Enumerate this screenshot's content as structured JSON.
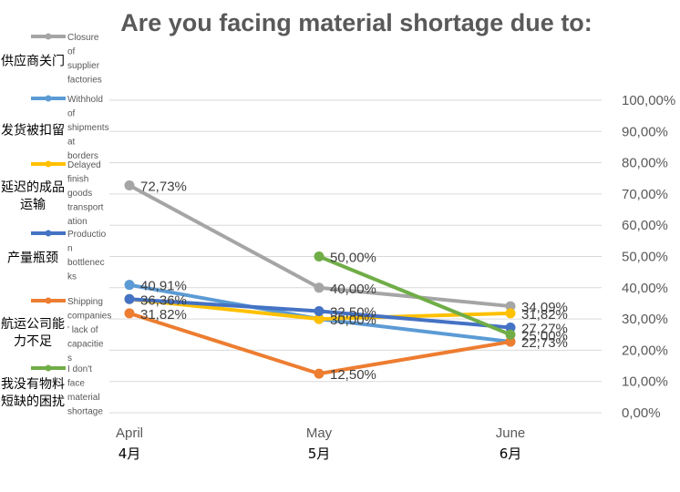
{
  "chart_data": {
    "type": "line",
    "title": "Are you facing material shortage due to:",
    "categories": [
      "April",
      "May",
      "June"
    ],
    "category_labels_cn": [
      "4月",
      "5月",
      "6月"
    ],
    "ylim": [
      0,
      100
    ],
    "y_ticks": [
      "0,00%",
      "10,00%",
      "20,00%",
      "30,00%",
      "40,00%",
      "50,00%",
      "60,00%",
      "70,00%",
      "80,00%",
      "90,00%",
      "100,00%"
    ],
    "grid": true,
    "legend_position": "left",
    "series": [
      {
        "name": "Closure of supplier factories",
        "name_cn": "供应商关门",
        "color": "#a5a5a5",
        "values": [
          72.73,
          40.0,
          34.09
        ],
        "labels": [
          "72,73%",
          "40,00%",
          "34,09%"
        ]
      },
      {
        "name": "Withhold of shipments at borders",
        "name_cn": "发货被扣留",
        "color": "#5b9bd5",
        "values": [
          40.91,
          30.0,
          22.73
        ],
        "labels": [
          "40,91%",
          "",
          ""
        ]
      },
      {
        "name": "Delayed finish goods transportation",
        "name_cn": "延迟的成品运输",
        "color": "#ffc000",
        "values": [
          36.36,
          30.0,
          31.82
        ],
        "labels": [
          "",
          "30,00%",
          "31,82%"
        ]
      },
      {
        "name": "Production bottlenecks",
        "name_cn": "产量瓶颈",
        "color": "#4472c4",
        "values": [
          36.36,
          32.5,
          27.27
        ],
        "labels": [
          "36,36%",
          "32,50%",
          "27,27%"
        ]
      },
      {
        "name": "Shipping companies' lack of capacities",
        "name_cn": "航运公司能力不足",
        "color": "#ed7d31",
        "values": [
          31.82,
          12.5,
          22.73
        ],
        "labels": [
          "31,82%",
          "12,50%",
          "22,73%"
        ]
      },
      {
        "name": "I don't face material shortage",
        "name_cn": "我没有物料短缺的困扰",
        "color": "#70ad47",
        "values": [
          null,
          50.0,
          25.0
        ],
        "labels": [
          "",
          "50,00%",
          "25,00%"
        ]
      }
    ]
  }
}
